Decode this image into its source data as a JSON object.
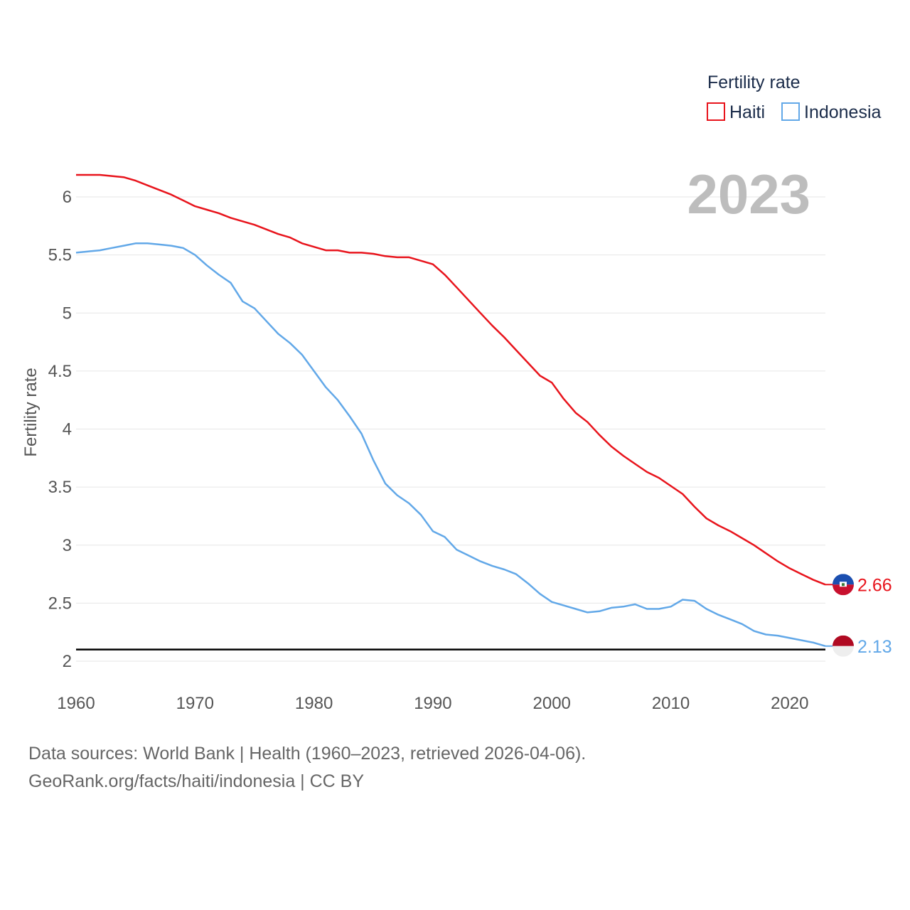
{
  "chart_data": {
    "type": "line",
    "title": "Fertility rate",
    "year_label": "2023",
    "ylabel": "Fertility rate",
    "xlabel": "",
    "xlim": [
      1960,
      2023
    ],
    "ylim": [
      2,
      6.3
    ],
    "x_ticks": [
      1960,
      1970,
      1980,
      1990,
      2000,
      2010,
      2020
    ],
    "y_ticks": [
      2,
      2.5,
      3,
      3.5,
      4,
      4.5,
      5,
      5.5,
      6
    ],
    "y_tick_labels": [
      "2",
      "2.5",
      "3",
      "3.5",
      "4",
      "4.5",
      "5",
      "5.5",
      "6"
    ],
    "x_tick_labels": [
      "1960",
      "1970",
      "1980",
      "1990",
      "2000",
      "2010",
      "2020"
    ],
    "grid": true,
    "legend_position": "top-right",
    "reference_line": {
      "y": 2.1,
      "color": "#000000"
    },
    "x": [
      1960,
      1961,
      1962,
      1963,
      1964,
      1965,
      1966,
      1967,
      1968,
      1969,
      1970,
      1971,
      1972,
      1973,
      1974,
      1975,
      1976,
      1977,
      1978,
      1979,
      1980,
      1981,
      1982,
      1983,
      1984,
      1985,
      1986,
      1987,
      1988,
      1989,
      1990,
      1991,
      1992,
      1993,
      1994,
      1995,
      1996,
      1997,
      1998,
      1999,
      2000,
      2001,
      2002,
      2003,
      2004,
      2005,
      2006,
      2007,
      2008,
      2009,
      2010,
      2011,
      2012,
      2013,
      2014,
      2015,
      2016,
      2017,
      2018,
      2019,
      2020,
      2021,
      2022,
      2023
    ],
    "series": [
      {
        "name": "Haiti",
        "color": "#e8141c",
        "end_label": "2.66",
        "values": [
          6.19,
          6.19,
          6.19,
          6.18,
          6.17,
          6.14,
          6.1,
          6.06,
          6.02,
          5.97,
          5.92,
          5.89,
          5.86,
          5.82,
          5.79,
          5.76,
          5.72,
          5.68,
          5.65,
          5.6,
          5.57,
          5.54,
          5.54,
          5.52,
          5.52,
          5.51,
          5.49,
          5.48,
          5.48,
          5.45,
          5.42,
          5.33,
          5.22,
          5.11,
          5.0,
          4.89,
          4.79,
          4.68,
          4.57,
          4.46,
          4.4,
          4.26,
          4.14,
          4.06,
          3.95,
          3.85,
          3.77,
          3.7,
          3.63,
          3.58,
          3.51,
          3.44,
          3.33,
          3.23,
          3.17,
          3.12,
          3.06,
          3.0,
          2.93,
          2.86,
          2.8,
          2.75,
          2.7,
          2.66
        ]
      },
      {
        "name": "Indonesia",
        "color": "#62a8e8",
        "end_label": "2.13",
        "values": [
          5.52,
          5.53,
          5.54,
          5.56,
          5.58,
          5.6,
          5.6,
          5.59,
          5.58,
          5.56,
          5.5,
          5.41,
          5.33,
          5.26,
          5.1,
          5.04,
          4.93,
          4.82,
          4.74,
          4.64,
          4.5,
          4.36,
          4.25,
          4.11,
          3.96,
          3.73,
          3.53,
          3.43,
          3.36,
          3.26,
          3.12,
          3.07,
          2.96,
          2.91,
          2.86,
          2.82,
          2.79,
          2.75,
          2.67,
          2.58,
          2.51,
          2.48,
          2.45,
          2.42,
          2.43,
          2.46,
          2.47,
          2.49,
          2.45,
          2.45,
          2.47,
          2.53,
          2.52,
          2.45,
          2.4,
          2.36,
          2.32,
          2.26,
          2.23,
          2.22,
          2.2,
          2.18,
          2.16,
          2.13
        ]
      }
    ]
  },
  "legend": {
    "title": "Fertility rate",
    "items": [
      {
        "label": "Haiti",
        "color": "#e8141c"
      },
      {
        "label": "Indonesia",
        "color": "#62a8e8"
      }
    ]
  },
  "flags": [
    {
      "country": "Haiti",
      "icon": "haiti-flag-icon",
      "top_color": "#1b4fb0",
      "bottom_color": "#c8102e"
    },
    {
      "country": "Indonesia",
      "icon": "indonesia-flag-icon",
      "top_color": "#b00a22",
      "bottom_color": "#eeeeee"
    }
  ],
  "footer": {
    "line1": "Data sources: World Bank | Health (1960–2023, retrieved 2026-04-06).",
    "line2": "GeoRank.org/facts/haiti/indonesia | CC BY"
  }
}
